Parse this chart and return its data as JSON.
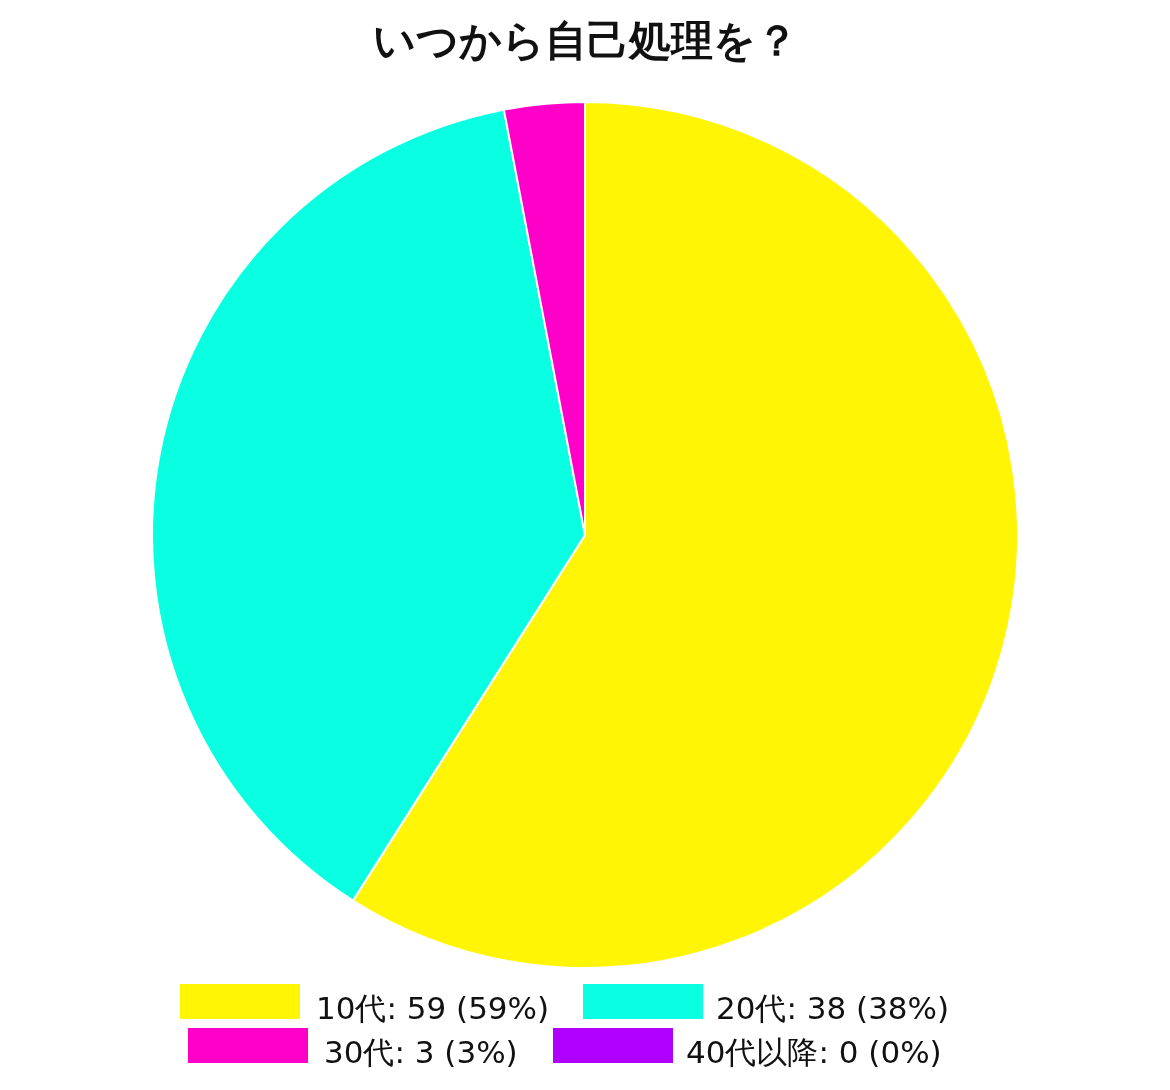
{
  "chart_data": {
    "type": "pie",
    "title": "いつから自己処理を？",
    "categories": [
      "10代: 59 (59%)",
      "20代: 38 (38%)",
      "30代: 3 (3%)",
      "40代以降: 0 (0%)"
    ],
    "values": [
      59,
      38,
      3,
      0
    ],
    "colors": [
      "#fff505",
      "#0affe2",
      "#ff00c8",
      "#b000ff"
    ],
    "legend": "bottom"
  }
}
